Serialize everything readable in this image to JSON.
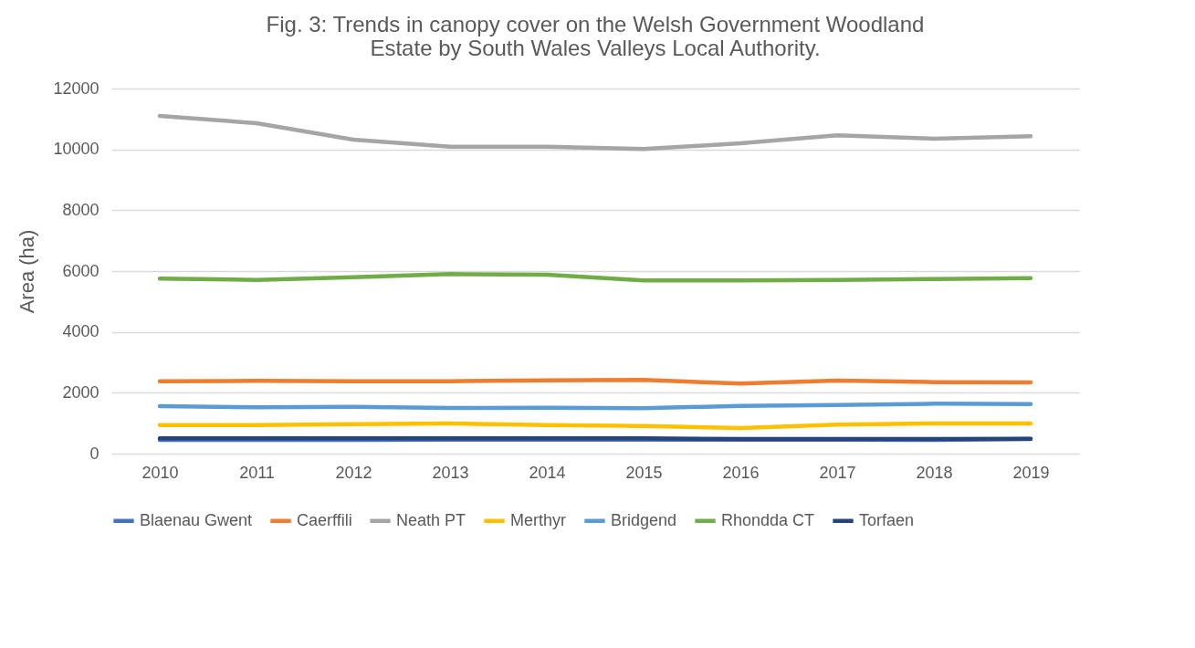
{
  "chart_data": {
    "type": "line",
    "title": [
      "Fig. 3: Trends in canopy cover on the Welsh Government Woodland",
      "Estate by South Wales Valleys Local Authority."
    ],
    "ylabel": "Area (ha)",
    "categories": [
      "2010",
      "2011",
      "2012",
      "2013",
      "2014",
      "2015",
      "2016",
      "2017",
      "2018",
      "2019"
    ],
    "ylim": [
      0,
      12000
    ],
    "yticks": [
      0,
      2000,
      4000,
      6000,
      8000,
      10000,
      12000
    ],
    "grid": "y",
    "legend": "bottom",
    "marker": "none",
    "series": [
      {
        "name": "Blaenau Gwent",
        "color": "#4472c4",
        "values": [
          450,
          450,
          450,
          460,
          460,
          460,
          460,
          460,
          450,
          480
        ]
      },
      {
        "name": "Caerffili",
        "color": "#ed7d31",
        "values": [
          2380,
          2390,
          2380,
          2380,
          2410,
          2420,
          2300,
          2400,
          2350,
          2340
        ]
      },
      {
        "name": "Neath PT",
        "color": "#a5a5a5",
        "values": [
          11100,
          10860,
          10320,
          10090,
          10090,
          10010,
          10200,
          10460,
          10350,
          10430
        ]
      },
      {
        "name": "Merthyr",
        "color": "#ffc000",
        "values": [
          940,
          940,
          970,
          990,
          940,
          910,
          840,
          950,
          990,
          990
        ]
      },
      {
        "name": "Bridgend",
        "color": "#5b9bd5",
        "values": [
          1560,
          1520,
          1540,
          1500,
          1510,
          1490,
          1570,
          1600,
          1640,
          1630
        ]
      },
      {
        "name": "Rhondda CT",
        "color": "#70ad47",
        "values": [
          5750,
          5710,
          5800,
          5900,
          5880,
          5690,
          5690,
          5710,
          5740,
          5770
        ]
      },
      {
        "name": "Torfaen",
        "color": "#264478",
        "values": [
          500,
          500,
          500,
          500,
          500,
          500,
          480,
          480,
          480,
          490
        ]
      }
    ]
  }
}
